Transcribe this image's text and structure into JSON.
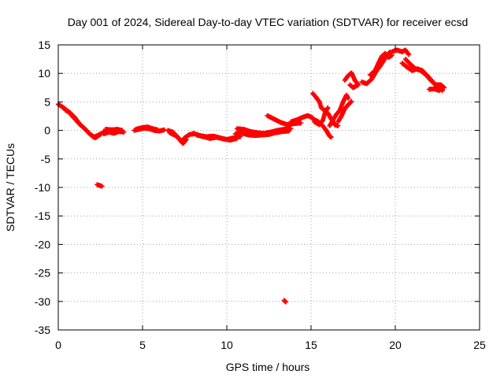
{
  "chart_data": {
    "type": "scatter",
    "title": "Day 001 of 2024, Sidereal Day-to-day VTEC variation (SDTVAR) for receiver ecsd",
    "xlabel": "GPS time / hours",
    "ylabel": "SDTVAR / TECUs",
    "xlim": [
      0,
      25
    ],
    "ylim": [
      -35,
      15
    ],
    "xticks": [
      0,
      5,
      10,
      15,
      20,
      25
    ],
    "yticks": [
      15,
      10,
      5,
      0,
      -5,
      -10,
      -15,
      -20,
      -25,
      -30,
      -35
    ],
    "grid": true,
    "marker": "+",
    "color": "#ff0000",
    "series": [
      {
        "name": "SDTVAR",
        "segments": [
          [
            [
              0.0,
              4.6
            ],
            [
              0.3,
              4.0
            ],
            [
              0.6,
              3.3
            ],
            [
              0.9,
              2.3
            ],
            [
              1.2,
              1.3
            ],
            [
              1.5,
              0.5
            ],
            [
              1.8,
              -0.4
            ],
            [
              2.1,
              -1.2
            ],
            [
              2.4,
              -0.8
            ],
            [
              2.7,
              -0.3
            ],
            [
              3.0,
              -0.2
            ]
          ],
          [
            [
              0.4,
              3.6
            ],
            [
              0.7,
              3.1
            ],
            [
              1.0,
              2.2
            ],
            [
              1.3,
              1.0
            ],
            [
              1.6,
              0.2
            ],
            [
              1.9,
              -0.7
            ],
            [
              2.2,
              -1.3
            ],
            [
              2.5,
              -0.7
            ]
          ],
          [
            [
              2.7,
              -0.6
            ],
            [
              3.0,
              -0.3
            ],
            [
              3.3,
              -0.5
            ],
            [
              3.6,
              -0.2
            ],
            [
              3.9,
              -0.3
            ]
          ],
          [
            [
              2.8,
              0.2
            ],
            [
              3.2,
              0.1
            ],
            [
              3.5,
              0.2
            ],
            [
              3.8,
              0.0
            ]
          ],
          [
            [
              2.3,
              -9.5
            ],
            [
              2.5,
              -9.7
            ],
            [
              2.6,
              -9.8
            ]
          ],
          [
            [
              4.5,
              0.0
            ],
            [
              4.8,
              0.2
            ],
            [
              5.1,
              0.4
            ],
            [
              5.4,
              0.3
            ],
            [
              5.7,
              0.0
            ],
            [
              6.0,
              -0.1
            ],
            [
              6.3,
              0.1
            ]
          ],
          [
            [
              4.6,
              0.2
            ],
            [
              5.0,
              0.5
            ],
            [
              5.3,
              0.6
            ],
            [
              5.6,
              0.3
            ],
            [
              5.9,
              0.1
            ]
          ],
          [
            [
              6.5,
              0.0
            ],
            [
              6.8,
              -0.3
            ],
            [
              7.1,
              -1.2
            ],
            [
              7.3,
              -2.0
            ],
            [
              7.5,
              -1.3
            ],
            [
              7.8,
              -0.7
            ],
            [
              8.1,
              -0.6
            ]
          ],
          [
            [
              6.6,
              -0.4
            ],
            [
              6.9,
              -0.8
            ],
            [
              7.2,
              -1.5
            ],
            [
              7.4,
              -2.3
            ],
            [
              7.6,
              -1.6
            ]
          ],
          [
            [
              8.0,
              -0.5
            ],
            [
              8.4,
              -0.9
            ],
            [
              8.8,
              -1.1
            ],
            [
              9.2,
              -1.0
            ],
            [
              9.6,
              -1.3
            ],
            [
              10.0,
              -1.6
            ],
            [
              10.4,
              -1.3
            ],
            [
              10.8,
              -1.1
            ]
          ],
          [
            [
              8.2,
              -0.8
            ],
            [
              8.6,
              -1.1
            ],
            [
              9.0,
              -1.4
            ],
            [
              9.4,
              -1.2
            ],
            [
              9.8,
              -1.5
            ],
            [
              10.2,
              -1.7
            ],
            [
              10.6,
              -1.4
            ]
          ],
          [
            [
              10.5,
              -0.6
            ],
            [
              10.9,
              -0.5
            ],
            [
              11.3,
              -0.8
            ],
            [
              11.7,
              -0.9
            ],
            [
              12.1,
              -0.8
            ],
            [
              12.5,
              -0.7
            ],
            [
              12.9,
              -0.4
            ],
            [
              13.3,
              -0.2
            ],
            [
              13.7,
              -0.1
            ]
          ],
          [
            [
              10.6,
              0.3
            ],
            [
              11.0,
              0.2
            ],
            [
              11.4,
              -0.2
            ],
            [
              11.8,
              -0.4
            ],
            [
              12.2,
              -0.5
            ],
            [
              12.6,
              -0.3
            ],
            [
              13.0,
              0.0
            ],
            [
              13.4,
              0.2
            ],
            [
              13.8,
              0.3
            ]
          ],
          [
            [
              12.4,
              2.6
            ],
            [
              12.8,
              2.0
            ],
            [
              13.2,
              1.4
            ],
            [
              13.6,
              1.0
            ],
            [
              14.0,
              1.2
            ],
            [
              14.4,
              1.3
            ]
          ],
          [
            [
              13.8,
              1.5
            ],
            [
              14.2,
              1.9
            ],
            [
              14.5,
              2.3
            ],
            [
              14.8,
              2.6
            ],
            [
              15.1,
              2.2
            ]
          ],
          [
            [
              13.4,
              -29.8
            ],
            [
              13.5,
              -30.1
            ]
          ],
          [
            [
              15.1,
              2.0
            ],
            [
              15.4,
              1.6
            ],
            [
              15.7,
              0.8
            ],
            [
              15.9,
              0.0
            ],
            [
              16.1,
              -1.0
            ],
            [
              16.2,
              -1.2
            ]
          ],
          [
            [
              15.2,
              1.5
            ],
            [
              15.5,
              1.0
            ],
            [
              15.7,
              1.8
            ],
            [
              15.8,
              2.8
            ],
            [
              15.9,
              3.5
            ],
            [
              16.0,
              4.0
            ]
          ],
          [
            [
              15.1,
              6.5
            ],
            [
              15.3,
              5.8
            ],
            [
              15.5,
              5.0
            ],
            [
              15.6,
              4.0
            ],
            [
              15.8,
              3.5
            ],
            [
              16.0,
              3.0
            ],
            [
              16.2,
              2.0
            ],
            [
              16.4,
              1.0
            ],
            [
              16.6,
              0.8
            ]
          ],
          [
            [
              16.1,
              0.8
            ],
            [
              16.3,
              1.8
            ],
            [
              16.5,
              2.8
            ],
            [
              16.7,
              3.5
            ],
            [
              16.9,
              5.0
            ],
            [
              17.1,
              6.2
            ],
            [
              17.2,
              5.6
            ]
          ],
          [
            [
              16.6,
              1.5
            ],
            [
              16.8,
              2.5
            ],
            [
              17.0,
              3.8
            ],
            [
              17.2,
              4.5
            ],
            [
              17.4,
              5.1
            ]
          ],
          [
            [
              17.0,
              8.8
            ],
            [
              17.2,
              9.6
            ],
            [
              17.4,
              10.1
            ],
            [
              17.6,
              8.8
            ],
            [
              17.8,
              8.0
            ],
            [
              17.5,
              7.5
            ],
            [
              17.3,
              8.0
            ]
          ],
          [
            [
              18.0,
              8.5
            ],
            [
              18.3,
              8.2
            ],
            [
              18.6,
              9.0
            ],
            [
              18.9,
              10.5
            ],
            [
              19.1,
              11.3
            ],
            [
              19.3,
              12.2
            ],
            [
              19.5,
              13.2
            ],
            [
              19.7,
              13.8
            ]
          ],
          [
            [
              18.5,
              9.7
            ],
            [
              18.8,
              10.5
            ],
            [
              19.0,
              11.8
            ],
            [
              19.2,
              13.0
            ],
            [
              19.4,
              13.5
            ],
            [
              19.6,
              12.8
            ],
            [
              19.8,
              13.2
            ]
          ],
          [
            [
              19.8,
              13.8
            ],
            [
              20.1,
              14.1
            ],
            [
              20.4,
              13.8
            ],
            [
              20.6,
              14.1
            ],
            [
              20.8,
              13.3
            ]
          ],
          [
            [
              20.4,
              11.8
            ],
            [
              20.7,
              11.1
            ],
            [
              21.0,
              10.5
            ],
            [
              21.3,
              10.8
            ],
            [
              21.6,
              10.5
            ],
            [
              21.9,
              9.6
            ],
            [
              22.2,
              8.6
            ],
            [
              22.5,
              7.6
            ],
            [
              22.8,
              7.0
            ]
          ],
          [
            [
              20.6,
              12.5
            ],
            [
              20.9,
              11.6
            ],
            [
              21.2,
              10.8
            ],
            [
              21.5,
              10.5
            ],
            [
              21.8,
              9.8
            ],
            [
              22.1,
              8.8
            ],
            [
              22.4,
              8.0
            ],
            [
              22.7,
              8.0
            ],
            [
              22.9,
              7.5
            ]
          ],
          [
            [
              22.0,
              7.2
            ],
            [
              22.3,
              7.3
            ],
            [
              22.6,
              7.0
            ],
            [
              22.8,
              7.6
            ]
          ]
        ]
      }
    ]
  }
}
